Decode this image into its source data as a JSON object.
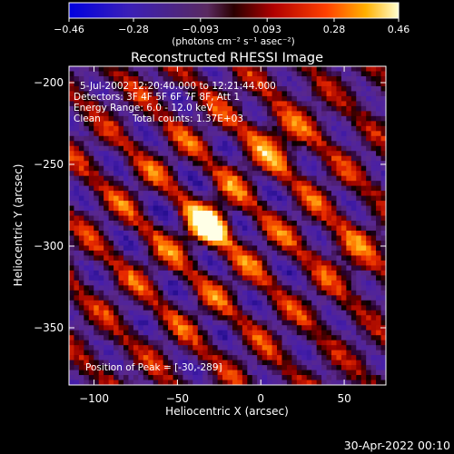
{
  "chart_data": {
    "type": "heatmap",
    "title": "Reconstructed RHESSI Image",
    "xlabel": "Heliocentric X (arcsec)",
    "ylabel": "Heliocentric Y (arcsec)",
    "xlim": [
      -115,
      75
    ],
    "ylim": [
      -385,
      -190
    ],
    "x_ticks": [
      -100,
      -50,
      0,
      50
    ],
    "y_ticks": [
      -200,
      -250,
      -300,
      -350
    ],
    "colorbar": {
      "range": [
        -0.46,
        0.46
      ],
      "ticks": [
        "-0.46",
        "-0.28",
        "-0.093",
        "0.093",
        "0.28",
        "0.46"
      ],
      "units": "(photons cm⁻² s⁻¹ asec⁻²)",
      "colormap": [
        "#000000",
        "#2a0a8a",
        "#5b2cc0",
        "#7a3090",
        "#b01010",
        "#ff3000",
        "#ff8c00",
        "#ffd700",
        "#ffffff"
      ]
    },
    "annotations": {
      "time": "5-Jul-2002 12:20:40.000 to 12:21:44.000",
      "detectors": "Detectors: 3F 4F 5F 6F 7F 8F, Att 1",
      "energy": "Energy Range: 6.0 - 12.0 keV",
      "clean": "Clean",
      "counts": "Total counts: 1.37E+03",
      "peak": "Position of Peak = [-30,-289]"
    },
    "peak": {
      "x": -30,
      "y": -289
    }
  },
  "footer_date": "30-Apr-2022 00:10"
}
